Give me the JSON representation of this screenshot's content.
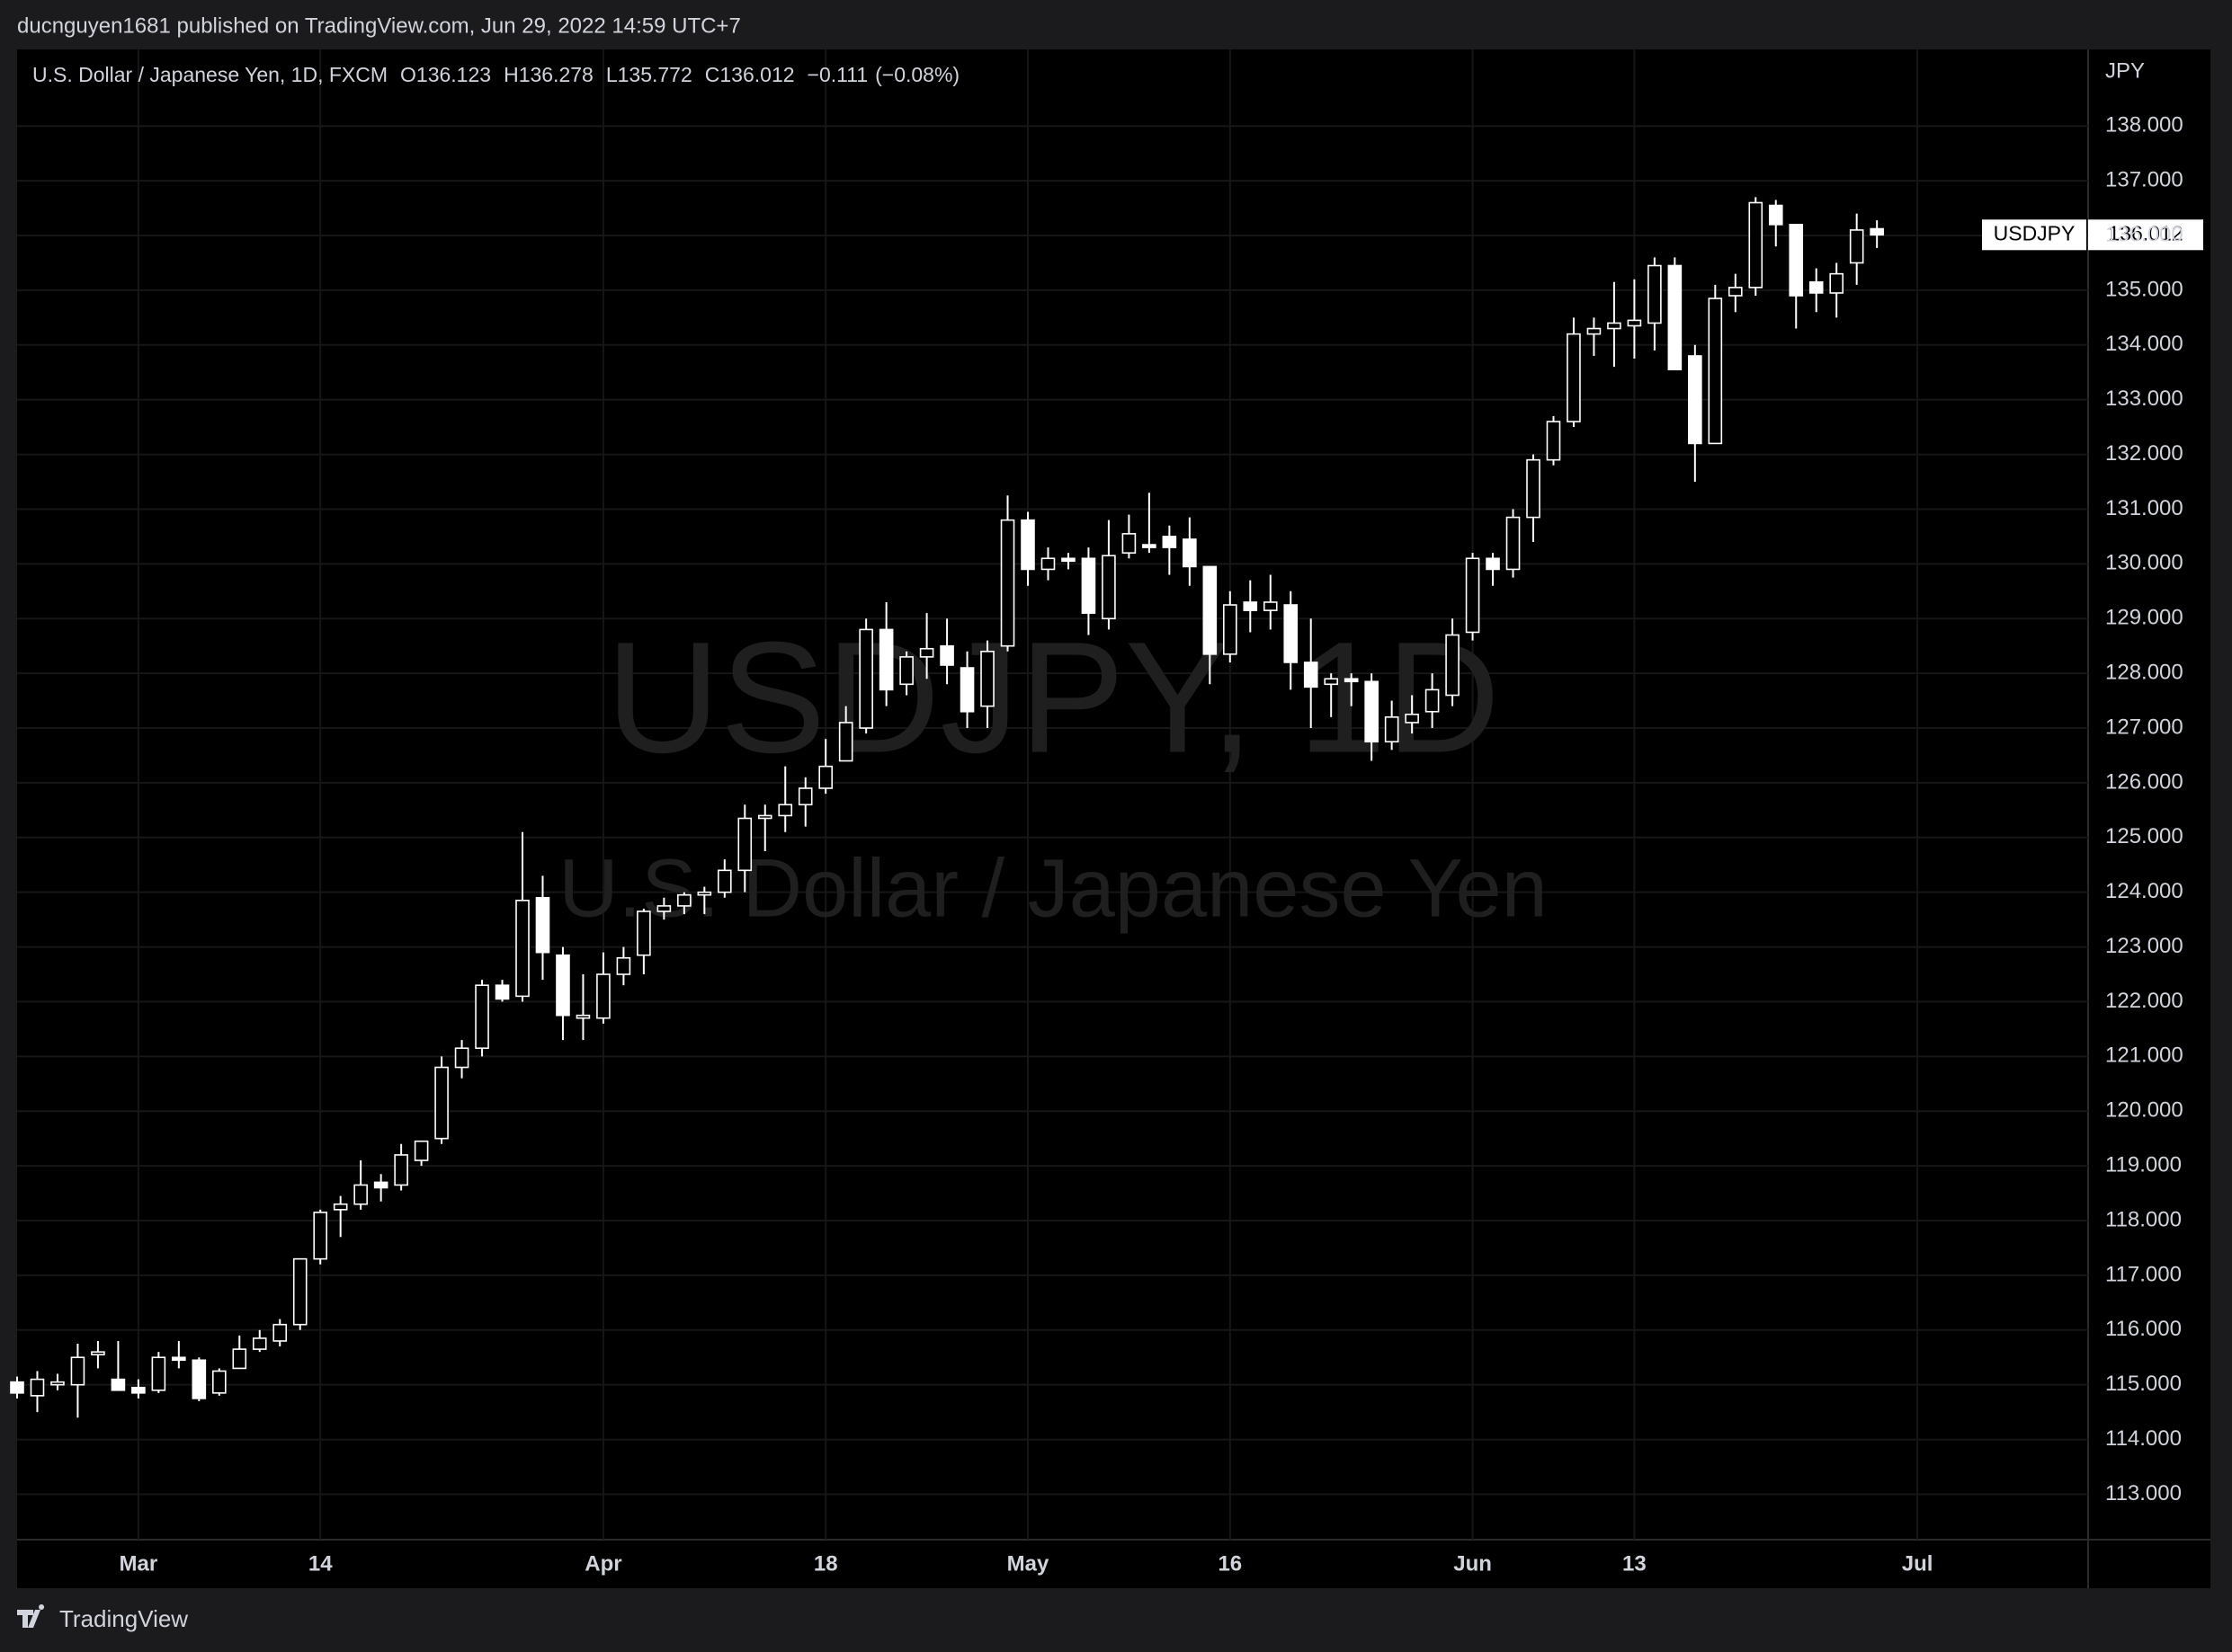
{
  "header": {
    "author_line": "ducnguyen1681 published on TradingView.com, Jun 29, 2022 14:59 UTC+7",
    "symbol_line": "U.S. Dollar / Japanese Yen, 1D, FXCM",
    "ohlc_labels": [
      "O",
      "H",
      "L",
      "C"
    ],
    "change": "−0.111",
    "change_pct": "(−0.08%)"
  },
  "watermark": {
    "title": "USDJPY, 1D",
    "subtitle": "U.S. Dollar / Japanese Yen"
  },
  "footer": {
    "brand": "TradingView"
  },
  "chart_data": {
    "type": "candlestick",
    "symbol": "USDJPY",
    "y_axis_label": "JPY",
    "up_color": "#000000",
    "down_color": "#ffffff",
    "wick_color": "#ffffff",
    "grid": true,
    "categories": [
      null,
      null,
      null,
      null,
      null,
      null,
      "Mar",
      null,
      null,
      null,
      null,
      null,
      null,
      null,
      null,
      "14",
      null,
      null,
      null,
      null,
      null,
      null,
      null,
      null,
      null,
      null,
      null,
      null,
      null,
      "Apr",
      null,
      null,
      null,
      null,
      null,
      null,
      null,
      null,
      null,
      null,
      "18",
      null,
      null,
      null,
      null,
      null,
      null,
      null,
      null,
      null,
      "May",
      null,
      null,
      null,
      null,
      null,
      null,
      null,
      null,
      null,
      "16",
      null,
      null,
      null,
      null,
      null,
      null,
      null,
      null,
      null,
      null,
      null,
      "Jun",
      null,
      null,
      null,
      null,
      null,
      null,
      null,
      "13",
      null,
      null,
      null,
      null,
      null,
      null,
      null,
      null,
      null,
      null,
      null,
      null,
      null,
      "Jul"
    ],
    "open": [
      115.05,
      114.8,
      115.0,
      115.0,
      115.55,
      115.1,
      114.95,
      114.9,
      115.5,
      115.45,
      114.85,
      115.3,
      115.65,
      115.8,
      116.1,
      117.3,
      118.2,
      118.3,
      118.7,
      118.65,
      119.1,
      119.5,
      120.8,
      121.15,
      122.3,
      122.1,
      123.9,
      122.85,
      121.7,
      121.7,
      122.5,
      122.85,
      123.65,
      123.75,
      123.95,
      124.0,
      124.4,
      125.35,
      125.4,
      125.6,
      125.9,
      126.4,
      127.0,
      128.8,
      127.8,
      128.3,
      128.5,
      128.1,
      127.4,
      128.5,
      130.8,
      129.9,
      130.1,
      130.1,
      129.0,
      130.2,
      130.35,
      130.5,
      130.45,
      129.95,
      128.35,
      129.3,
      129.15,
      129.25,
      128.2,
      127.8,
      127.9,
      127.85,
      126.75,
      127.1,
      127.3,
      127.6,
      128.75,
      130.1,
      129.9,
      130.85,
      131.9,
      132.6,
      134.2,
      134.3,
      134.35,
      134.4,
      135.45,
      133.8,
      132.2,
      134.9,
      135.05,
      136.55,
      136.2,
      135.15,
      134.95,
      135.5,
      136.123,
      null,
      null
    ],
    "high": [
      115.15,
      115.25,
      115.2,
      115.75,
      115.8,
      115.8,
      115.1,
      115.6,
      115.8,
      115.5,
      115.3,
      115.9,
      116.0,
      116.2,
      117.3,
      118.2,
      118.45,
      119.1,
      118.85,
      119.4,
      119.45,
      121.0,
      121.3,
      122.4,
      122.4,
      125.1,
      124.3,
      123.0,
      122.5,
      122.9,
      123.0,
      123.7,
      123.9,
      124.0,
      124.1,
      124.6,
      125.6,
      125.6,
      126.3,
      126.1,
      126.8,
      127.4,
      129.0,
      129.3,
      128.4,
      129.1,
      129.0,
      128.4,
      128.6,
      131.25,
      130.95,
      130.3,
      130.2,
      130.3,
      130.8,
      130.9,
      131.3,
      130.7,
      130.85,
      129.95,
      129.5,
      129.7,
      129.8,
      129.5,
      129.0,
      128.0,
      128.0,
      128.0,
      127.5,
      127.6,
      128.0,
      129.0,
      130.2,
      130.2,
      131.0,
      132.0,
      132.7,
      134.5,
      134.5,
      135.15,
      135.2,
      135.6,
      135.6,
      134.0,
      135.1,
      135.3,
      136.7,
      136.65,
      136.2,
      135.4,
      135.5,
      136.4,
      136.278,
      null,
      null
    ],
    "low": [
      114.75,
      114.5,
      114.9,
      114.4,
      115.3,
      114.9,
      114.75,
      114.85,
      115.3,
      114.7,
      114.8,
      115.3,
      115.6,
      115.7,
      116.0,
      117.2,
      117.7,
      118.2,
      118.35,
      118.55,
      119.0,
      119.4,
      120.6,
      121.0,
      122.0,
      122.0,
      122.4,
      121.3,
      121.3,
      121.6,
      122.3,
      122.5,
      123.5,
      123.6,
      123.6,
      123.9,
      124.0,
      124.75,
      125.1,
      125.2,
      125.8,
      126.4,
      126.9,
      127.4,
      127.6,
      127.9,
      127.8,
      127.0,
      127.0,
      128.4,
      129.6,
      129.7,
      129.9,
      128.7,
      128.8,
      130.1,
      130.2,
      129.8,
      129.6,
      127.8,
      128.2,
      128.75,
      128.8,
      127.7,
      127.0,
      127.2,
      127.4,
      126.4,
      126.6,
      126.9,
      127.0,
      127.4,
      128.6,
      129.6,
      129.75,
      130.4,
      131.8,
      132.5,
      133.8,
      133.6,
      133.75,
      133.9,
      133.6,
      131.5,
      132.2,
      134.6,
      134.9,
      135.8,
      134.3,
      134.6,
      134.5,
      135.1,
      135.772,
      null,
      null
    ],
    "close": [
      114.85,
      115.1,
      115.05,
      115.5,
      115.6,
      114.9,
      114.85,
      115.5,
      115.45,
      114.75,
      115.25,
      115.65,
      115.85,
      116.1,
      117.3,
      118.15,
      118.3,
      118.65,
      118.6,
      119.2,
      119.45,
      120.8,
      121.15,
      122.3,
      122.05,
      123.85,
      122.9,
      121.75,
      121.75,
      122.5,
      122.8,
      123.65,
      123.75,
      123.95,
      124.0,
      124.4,
      125.35,
      125.4,
      125.6,
      125.9,
      126.3,
      127.1,
      128.8,
      127.7,
      128.3,
      128.45,
      128.15,
      127.3,
      128.4,
      130.8,
      129.9,
      130.1,
      130.05,
      129.1,
      130.15,
      130.55,
      130.3,
      130.3,
      129.95,
      128.35,
      129.25,
      129.15,
      129.3,
      128.2,
      127.75,
      127.9,
      127.85,
      126.75,
      127.2,
      127.25,
      127.7,
      128.7,
      130.1,
      129.9,
      130.85,
      131.9,
      132.6,
      134.2,
      134.3,
      134.4,
      134.45,
      135.45,
      133.55,
      132.2,
      134.85,
      135.05,
      136.6,
      136.2,
      134.9,
      134.95,
      135.3,
      136.1,
      136.012,
      null,
      null
    ],
    "ylim": [
      112.17,
      139.4
    ],
    "yticks": [
      {
        "value": 113,
        "label": "113.000"
      },
      {
        "value": 114,
        "label": "114.000"
      },
      {
        "value": 115,
        "label": "115.000"
      },
      {
        "value": 116,
        "label": "116.000"
      },
      {
        "value": 117,
        "label": "117.000"
      },
      {
        "value": 118,
        "label": "118.000"
      },
      {
        "value": 119,
        "label": "119.000"
      },
      {
        "value": 120,
        "label": "120.000"
      },
      {
        "value": 121,
        "label": "121.000"
      },
      {
        "value": 122,
        "label": "122.000"
      },
      {
        "value": 123,
        "label": "123.000"
      },
      {
        "value": 124,
        "label": "124.000"
      },
      {
        "value": 125,
        "label": "125.000"
      },
      {
        "value": 126,
        "label": "126.000"
      },
      {
        "value": 127,
        "label": "127.000"
      },
      {
        "value": 128,
        "label": "128.000"
      },
      {
        "value": 129,
        "label": "129.000"
      },
      {
        "value": 130,
        "label": "130.000"
      },
      {
        "value": 131,
        "label": "131.000"
      },
      {
        "value": 132,
        "label": "132.000"
      },
      {
        "value": 133,
        "label": "133.000"
      },
      {
        "value": 134,
        "label": "134.000"
      },
      {
        "value": 135,
        "label": "135.000"
      },
      {
        "value": 136,
        "label": "136.000"
      },
      {
        "value": 137,
        "label": "137.000"
      },
      {
        "value": 138,
        "label": "138.000"
      }
    ]
  }
}
